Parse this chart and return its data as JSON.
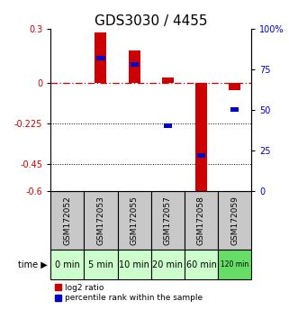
{
  "title": "GDS3030 / 4455",
  "samples": [
    "GSM172052",
    "GSM172053",
    "GSM172055",
    "GSM172057",
    "GSM172058",
    "GSM172059"
  ],
  "times": [
    "0 min",
    "5 min",
    "10 min",
    "20 min",
    "60 min",
    "120 min"
  ],
  "log2_ratio": [
    0.0,
    0.28,
    0.18,
    0.03,
    -0.62,
    -0.04
  ],
  "percentile_rank": [
    null,
    82,
    78,
    40,
    22,
    50
  ],
  "ylim_left": [
    -0.6,
    0.3
  ],
  "ylim_right": [
    0,
    100
  ],
  "yticks_left": [
    0.3,
    0,
    -0.225,
    -0.45,
    -0.6
  ],
  "yticks_right": [
    100,
    75,
    50,
    25,
    0
  ],
  "hlines": [
    -0.225,
    -0.45
  ],
  "bar_width": 0.35,
  "bar_color_red": "#cc0000",
  "bar_color_blue": "#0000cc",
  "grey_bg": "#c8c8c8",
  "green_bg_light": "#ccffcc",
  "green_bg_dark": "#66dd66",
  "title_fontsize": 11,
  "tick_fontsize": 7,
  "label_fontsize": 7,
  "sample_fontsize": 6.5,
  "time_fontsize": 7,
  "time_fontsize_small": 5.5,
  "legend_fontsize": 6.5
}
